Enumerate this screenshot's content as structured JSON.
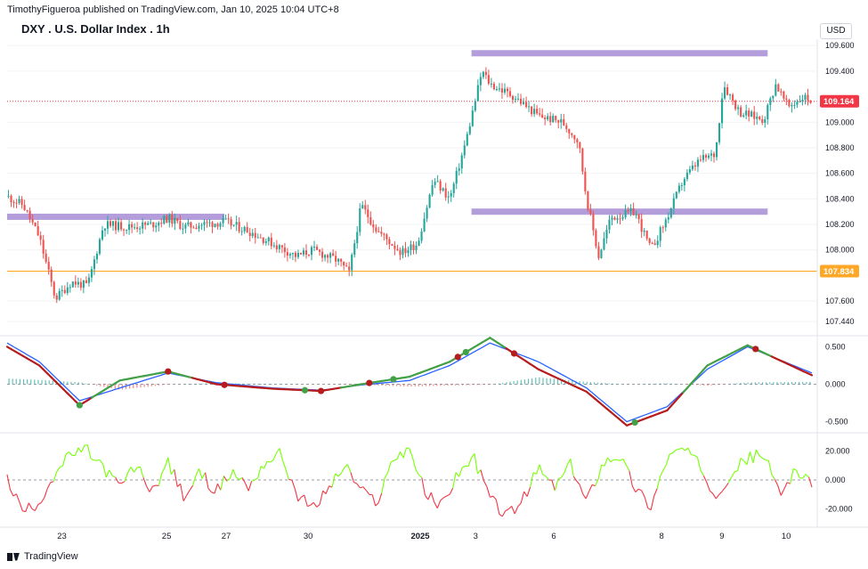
{
  "header": {
    "publisher_line": "TimothyFigueroa published on TradingView.com, Jan 10, 2025 10:04 UTC+8",
    "symbol_title": "DXY . U.S. Dollar Index . 1h",
    "currency_button": "USD",
    "brand": "TradingView"
  },
  "colors": {
    "bull": "#26a69a",
    "bear": "#ef5350",
    "zone": "#b39ddb",
    "support_line": "#ffa726",
    "macd_fast": "#2962ff",
    "signal_green": "#43a047",
    "signal_red": "#b71c1c",
    "osc_green": "#76ff03",
    "osc_red": "#f23645"
  },
  "chart_data": [
    {
      "type": "candlestick",
      "panel": "price",
      "title": "DXY . U.S. Dollar Index . 1h",
      "y_ticks": [
        "109.600",
        "109.400",
        "109.000",
        "108.800",
        "108.600",
        "108.400",
        "108.200",
        "108.000",
        "107.600",
        "107.440"
      ],
      "y_tick_values": [
        109.6,
        109.4,
        109.0,
        108.8,
        108.6,
        108.4,
        108.2,
        108.0,
        107.6,
        107.44
      ],
      "ylim": [
        107.35,
        109.65
      ],
      "x_ticks": [
        "23",
        "25",
        "27",
        "30",
        "2025",
        "3",
        "6",
        "8",
        "9",
        "10"
      ],
      "x_tick_positions": [
        0.07,
        0.2,
        0.274,
        0.376,
        0.516,
        0.587,
        0.684,
        0.818,
        0.893,
        0.97
      ],
      "price_labels": [
        {
          "label": "109.164",
          "value": 109.164,
          "color": "#f23645"
        },
        {
          "label": "107.834",
          "value": 107.834,
          "color": "#ffa726"
        }
      ],
      "zones": [
        {
          "x_start": 0.0,
          "x_end": 0.27,
          "value": 108.26
        },
        {
          "x_start": 0.577,
          "x_end": 0.945,
          "value": 108.3
        },
        {
          "x_start": 0.577,
          "x_end": 0.945,
          "value": 109.54
        }
      ],
      "support_level": 107.834,
      "key_points": [
        [
          0.0,
          108.42
        ],
        [
          0.02,
          108.35
        ],
        [
          0.04,
          108.1
        ],
        [
          0.06,
          107.62
        ],
        [
          0.08,
          107.75
        ],
        [
          0.1,
          107.72
        ],
        [
          0.12,
          108.2
        ],
        [
          0.15,
          108.18
        ],
        [
          0.18,
          108.2
        ],
        [
          0.2,
          108.25
        ],
        [
          0.22,
          108.18
        ],
        [
          0.24,
          108.2
        ],
        [
          0.27,
          108.22
        ],
        [
          0.3,
          108.15
        ],
        [
          0.33,
          108.05
        ],
        [
          0.36,
          107.95
        ],
        [
          0.38,
          108.0
        ],
        [
          0.41,
          107.92
        ],
        [
          0.425,
          107.82
        ],
        [
          0.44,
          108.35
        ],
        [
          0.46,
          108.15
        ],
        [
          0.49,
          107.98
        ],
        [
          0.51,
          108.05
        ],
        [
          0.53,
          108.55
        ],
        [
          0.55,
          108.4
        ],
        [
          0.57,
          108.85
        ],
        [
          0.59,
          109.4
        ],
        [
          0.6,
          109.3
        ],
        [
          0.63,
          109.2
        ],
        [
          0.66,
          109.05
        ],
        [
          0.69,
          109.0
        ],
        [
          0.71,
          108.85
        ],
        [
          0.72,
          108.4
        ],
        [
          0.735,
          107.95
        ],
        [
          0.75,
          108.25
        ],
        [
          0.78,
          108.3
        ],
        [
          0.8,
          108.0
        ],
        [
          0.82,
          108.25
        ],
        [
          0.84,
          108.55
        ],
        [
          0.86,
          108.7
        ],
        [
          0.88,
          108.75
        ],
        [
          0.89,
          109.3
        ],
        [
          0.91,
          109.08
        ],
        [
          0.94,
          109.02
        ],
        [
          0.955,
          109.3
        ],
        [
          0.97,
          109.12
        ],
        [
          0.99,
          109.2
        ],
        [
          1.0,
          109.164
        ]
      ]
    },
    {
      "type": "line",
      "panel": "macd",
      "y_ticks": [
        "0.500",
        "0.000",
        "-0.500"
      ],
      "y_tick_values": [
        0.5,
        0.0,
        -0.5
      ],
      "ylim": [
        -0.6,
        0.6
      ],
      "series": [
        {
          "role": "fast",
          "values": [
            [
              0.0,
              0.55
            ],
            [
              0.04,
              0.3
            ],
            [
              0.09,
              -0.22
            ],
            [
              0.14,
              -0.05
            ],
            [
              0.2,
              0.15
            ],
            [
              0.26,
              0.02
            ],
            [
              0.33,
              -0.05
            ],
            [
              0.39,
              -0.08
            ],
            [
              0.44,
              -0.01
            ],
            [
              0.5,
              0.05
            ],
            [
              0.55,
              0.25
            ],
            [
              0.6,
              0.55
            ],
            [
              0.66,
              0.3
            ],
            [
              0.72,
              -0.05
            ],
            [
              0.77,
              -0.5
            ],
            [
              0.82,
              -0.3
            ],
            [
              0.87,
              0.2
            ],
            [
              0.92,
              0.5
            ],
            [
              1.0,
              0.15
            ]
          ]
        },
        {
          "role": "signal",
          "values": [
            [
              0.0,
              0.5
            ],
            [
              0.04,
              0.25
            ],
            [
              0.09,
              -0.28
            ],
            [
              0.14,
              0.05
            ],
            [
              0.2,
              0.17
            ],
            [
              0.26,
              0.0
            ],
            [
              0.33,
              -0.06
            ],
            [
              0.39,
              -0.09
            ],
            [
              0.44,
              0.0
            ],
            [
              0.5,
              0.1
            ],
            [
              0.55,
              0.3
            ],
            [
              0.6,
              0.62
            ],
            [
              0.66,
              0.2
            ],
            [
              0.72,
              -0.1
            ],
            [
              0.77,
              -0.55
            ],
            [
              0.82,
              -0.35
            ],
            [
              0.87,
              0.25
            ],
            [
              0.92,
              0.52
            ],
            [
              1.0,
              0.12
            ]
          ]
        }
      ],
      "cross_markers": [
        {
          "x": 0.09,
          "color": "green"
        },
        {
          "x": 0.2,
          "color": "red"
        },
        {
          "x": 0.27,
          "color": "red"
        },
        {
          "x": 0.37,
          "color": "green"
        },
        {
          "x": 0.39,
          "color": "red"
        },
        {
          "x": 0.45,
          "color": "red"
        },
        {
          "x": 0.48,
          "color": "green"
        },
        {
          "x": 0.56,
          "color": "red"
        },
        {
          "x": 0.57,
          "color": "green"
        },
        {
          "x": 0.63,
          "color": "red"
        },
        {
          "x": 0.78,
          "color": "green"
        },
        {
          "x": 0.93,
          "color": "red"
        }
      ]
    },
    {
      "type": "line",
      "panel": "oscillator",
      "y_ticks": [
        "20.000",
        "0.000",
        "-20.000"
      ],
      "y_tick_values": [
        20,
        0,
        -20
      ],
      "ylim": [
        -30,
        30
      ],
      "values": [
        [
          0.0,
          0
        ],
        [
          0.02,
          -22
        ],
        [
          0.04,
          -15
        ],
        [
          0.06,
          5
        ],
        [
          0.08,
          18
        ],
        [
          0.1,
          20
        ],
        [
          0.12,
          8
        ],
        [
          0.14,
          -5
        ],
        [
          0.16,
          10
        ],
        [
          0.18,
          -8
        ],
        [
          0.2,
          12
        ],
        [
          0.22,
          -12
        ],
        [
          0.24,
          5
        ],
        [
          0.26,
          -8
        ],
        [
          0.28,
          6
        ],
        [
          0.3,
          -5
        ],
        [
          0.32,
          12
        ],
        [
          0.34,
          18
        ],
        [
          0.36,
          -10
        ],
        [
          0.38,
          -20
        ],
        [
          0.4,
          -5
        ],
        [
          0.42,
          10
        ],
        [
          0.44,
          -8
        ],
        [
          0.46,
          -15
        ],
        [
          0.48,
          15
        ],
        [
          0.5,
          22
        ],
        [
          0.52,
          -10
        ],
        [
          0.54,
          -18
        ],
        [
          0.56,
          5
        ],
        [
          0.58,
          15
        ],
        [
          0.6,
          -12
        ],
        [
          0.62,
          -25
        ],
        [
          0.64,
          -15
        ],
        [
          0.66,
          8
        ],
        [
          0.68,
          -5
        ],
        [
          0.7,
          10
        ],
        [
          0.72,
          -15
        ],
        [
          0.74,
          12
        ],
        [
          0.76,
          18
        ],
        [
          0.78,
          -5
        ],
        [
          0.8,
          -18
        ],
        [
          0.82,
          15
        ],
        [
          0.84,
          22
        ],
        [
          0.86,
          10
        ],
        [
          0.88,
          -10
        ],
        [
          0.9,
          5
        ],
        [
          0.92,
          15
        ],
        [
          0.94,
          18
        ],
        [
          0.96,
          -10
        ],
        [
          0.98,
          8
        ],
        [
          1.0,
          -5
        ]
      ]
    }
  ]
}
